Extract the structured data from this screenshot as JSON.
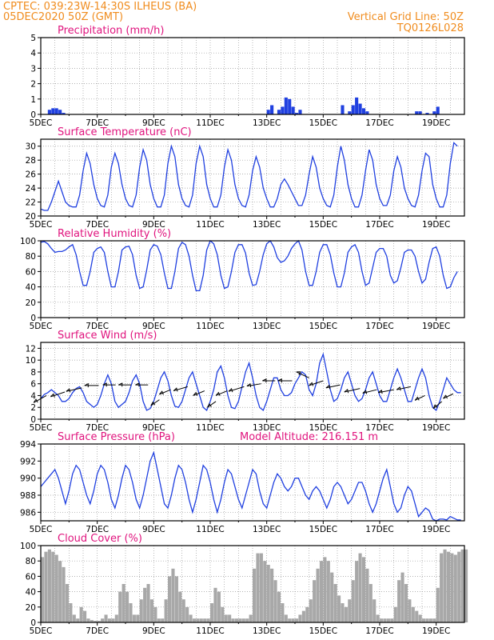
{
  "header": {
    "line1": "CPTEC:   039:23W-14:30S   ILHEUS (BA)",
    "line2": "05DEC2020 50Z (GMT)",
    "right1": "Vertical Grid Line: 50Z",
    "right2": "TQ0126L028"
  },
  "x_ticks": [
    "5DEC",
    "7DEC",
    "9DEC",
    "11DEC",
    "13DEC",
    "15DEC",
    "17DEC",
    "19DEC"
  ],
  "colors": {
    "header": "#f08c1e",
    "title": "#e0147e",
    "series": "#2040e0",
    "cloud": "#a8a8a8",
    "arrow": "#000000"
  },
  "chart_data": [
    {
      "type": "bar",
      "title": "Precipitation (mm/h)",
      "ylim": [
        0,
        5
      ],
      "yticks": [
        0,
        1,
        2,
        3,
        4,
        5
      ],
      "x_start": 5,
      "x_end": 20,
      "dt": 0.125,
      "values": [
        0,
        0,
        0.3,
        0.4,
        0.4,
        0.3,
        0.1,
        0,
        0,
        0,
        0,
        0,
        0,
        0,
        0,
        0,
        0,
        0,
        0,
        0,
        0,
        0,
        0,
        0,
        0,
        0,
        0,
        0,
        0,
        0,
        0,
        0,
        0,
        0,
        0,
        0,
        0,
        0,
        0,
        0,
        0,
        0,
        0,
        0,
        0,
        0,
        0,
        0,
        0,
        0,
        0,
        0,
        0,
        0,
        0,
        0,
        0,
        0,
        0,
        0,
        0,
        0,
        0,
        0,
        0.3,
        0.6,
        0,
        0.3,
        0.5,
        1.1,
        1.0,
        0.5,
        0.1,
        0.3,
        0,
        0,
        0,
        0,
        0,
        0,
        0,
        0,
        0,
        0,
        0,
        0.6,
        0,
        0.2,
        0.6,
        1.1,
        0.7,
        0.4,
        0.2,
        0,
        0,
        0,
        0,
        0,
        0,
        0,
        0,
        0,
        0,
        0,
        0,
        0,
        0.2,
        0.2,
        0,
        0.1,
        0,
        0.2,
        0.5,
        0,
        0,
        0,
        0,
        0,
        0,
        0,
        0,
        0
      ]
    },
    {
      "type": "line",
      "title": "Surface Temperature (nC)",
      "ylim": [
        20,
        31
      ],
      "yticks": [
        20,
        22,
        24,
        26,
        28,
        30
      ],
      "x_start": 5,
      "x_end": 20,
      "dt": 0.125,
      "values": [
        21,
        20.8,
        20.8,
        22,
        23.5,
        25,
        23.5,
        22,
        21.5,
        21.3,
        21.3,
        23,
        26.5,
        29,
        27.5,
        24.5,
        22.5,
        21.5,
        21.3,
        23,
        27,
        29,
        27.5,
        24.5,
        22.5,
        21.5,
        21.3,
        23,
        27,
        29.5,
        28,
        24.5,
        22.5,
        21.3,
        21.3,
        23,
        27.5,
        30,
        28.5,
        24.5,
        22.5,
        21.5,
        21.3,
        23,
        27.5,
        30,
        28.5,
        24.5,
        22.5,
        21.3,
        21.3,
        23,
        27,
        29.5,
        28,
        24.5,
        22.5,
        21.5,
        21.3,
        23,
        26.5,
        28.5,
        27,
        24,
        22.5,
        21.3,
        21.3,
        22.5,
        24.5,
        25.3,
        24.5,
        23.5,
        22.5,
        21.5,
        21.5,
        23,
        26,
        28.5,
        27,
        24,
        22.5,
        21.5,
        21.3,
        23,
        27,
        30,
        28,
        24.5,
        22.5,
        21.3,
        21.3,
        23,
        26.5,
        29.5,
        28,
        24.5,
        22.5,
        21.5,
        21.5,
        23,
        26.5,
        28.5,
        27,
        24,
        22.5,
        21.5,
        21.3,
        23,
        26.5,
        29,
        28.5,
        24.5,
        22.5,
        21.3,
        21.3,
        23,
        27.5,
        30.5,
        30
      ]
    },
    {
      "type": "line",
      "title": "Relative Humidity (%)",
      "ylim": [
        0,
        100
      ],
      "yticks": [
        0,
        20,
        40,
        60,
        80,
        100
      ],
      "x_start": 5,
      "x_end": 20,
      "dt": 0.125,
      "values": [
        98,
        99,
        96,
        90,
        85,
        86,
        86,
        88,
        92,
        95,
        82,
        60,
        42,
        42,
        60,
        85,
        90,
        92,
        85,
        60,
        40,
        40,
        60,
        88,
        92,
        93,
        82,
        55,
        38,
        40,
        62,
        88,
        95,
        93,
        82,
        58,
        38,
        38,
        60,
        90,
        98,
        95,
        80,
        55,
        35,
        35,
        55,
        88,
        100,
        96,
        82,
        55,
        38,
        40,
        60,
        85,
        95,
        95,
        84,
        58,
        42,
        43,
        60,
        82,
        96,
        100,
        92,
        78,
        72,
        74,
        80,
        90,
        96,
        100,
        88,
        60,
        42,
        42,
        60,
        85,
        95,
        95,
        82,
        58,
        40,
        40,
        58,
        85,
        92,
        95,
        85,
        60,
        42,
        45,
        65,
        85,
        90,
        90,
        80,
        55,
        45,
        48,
        65,
        85,
        88,
        88,
        80,
        60,
        45,
        50,
        72,
        90,
        92,
        80,
        55,
        38,
        40,
        52,
        60
      ]
    },
    {
      "type": "line",
      "title": "Surface Wind (m/s)",
      "ylim": [
        0,
        13
      ],
      "yticks": [
        0,
        2,
        4,
        6,
        8,
        10,
        12
      ],
      "x_start": 5,
      "x_end": 20,
      "dt": 0.125,
      "values": [
        3.5,
        4.2,
        4.5,
        5,
        4.5,
        4,
        3,
        3,
        3.5,
        4.5,
        5.2,
        5.5,
        4.5,
        3,
        2.5,
        2,
        2.5,
        4,
        6,
        7.5,
        6,
        3,
        2,
        2.5,
        3,
        4.5,
        6.5,
        7.5,
        6,
        3,
        1.5,
        1.8,
        3,
        5,
        7,
        8,
        6.5,
        4,
        2.2,
        2,
        3,
        5,
        7,
        8,
        6,
        4,
        2,
        1.5,
        3,
        5,
        8,
        9,
        7,
        4,
        2,
        1.8,
        3,
        5.5,
        8,
        9.5,
        7,
        4,
        2,
        1.5,
        3,
        5,
        7,
        7,
        5,
        4,
        4,
        4.5,
        6,
        7,
        8,
        7.5,
        5,
        4,
        6,
        9.5,
        11,
        8,
        5,
        3,
        3.5,
        5,
        7,
        8,
        6,
        4,
        3,
        3.5,
        5,
        7,
        8,
        6,
        4,
        3,
        3,
        5,
        7,
        8.5,
        7,
        5,
        3,
        3,
        5,
        7,
        8.5,
        7,
        4,
        2,
        1.5,
        3,
        5,
        7,
        6,
        5,
        4.5,
        4.5
      ]
    },
    {
      "type": "line",
      "title": "Surface Pressure (hPa)",
      "subtitle": "Model Altitude: 216.151  m",
      "ylim": [
        985,
        994
      ],
      "yticks": [
        986,
        988,
        990,
        992,
        994
      ],
      "x_start": 5,
      "x_end": 20,
      "dt": 0.125,
      "values": [
        989,
        989.5,
        990,
        990.5,
        991,
        990,
        988.5,
        987,
        988.5,
        990.5,
        991.5,
        991,
        989.5,
        988,
        987,
        988.5,
        990.5,
        991.5,
        991,
        989.5,
        987.5,
        986.5,
        988,
        990,
        991.5,
        991,
        989.5,
        987.5,
        986.5,
        988,
        990,
        992,
        993,
        991,
        989,
        987,
        986.5,
        988,
        990,
        991.5,
        991,
        989.5,
        987.5,
        986,
        987.5,
        989.5,
        991.5,
        991,
        989.5,
        987.5,
        986,
        987.5,
        989.5,
        991,
        990.5,
        989,
        987.5,
        986.5,
        988,
        989.5,
        991,
        990.5,
        988.5,
        987,
        986.5,
        988,
        989.5,
        990.5,
        990,
        989,
        988.5,
        989,
        990,
        990,
        989,
        988,
        987.5,
        988.5,
        989,
        988.5,
        987.5,
        986.5,
        987.5,
        989,
        989.5,
        989,
        988,
        987,
        987.5,
        988.5,
        989.5,
        989.5,
        988.5,
        987,
        986,
        987,
        988.5,
        990,
        991,
        989,
        987,
        986,
        986.5,
        988,
        989,
        988.5,
        987,
        985.5,
        986,
        986.5,
        986.2,
        985.2,
        985,
        985.2,
        985.2,
        985.1,
        985.5,
        985.3,
        985.1,
        985.1
      ]
    },
    {
      "type": "bar",
      "title": "Cloud Cover (%)",
      "ylim": [
        0,
        100
      ],
      "yticks": [
        0,
        20,
        40,
        60,
        80,
        100
      ],
      "x_start": 5,
      "x_end": 20,
      "dt": 0.125,
      "values": [
        85,
        92,
        95,
        92,
        88,
        80,
        72,
        50,
        25,
        10,
        5,
        20,
        15,
        5,
        3,
        2,
        2,
        5,
        10,
        5,
        5,
        10,
        40,
        50,
        40,
        25,
        10,
        10,
        30,
        45,
        50,
        30,
        20,
        5,
        5,
        30,
        60,
        70,
        60,
        40,
        30,
        20,
        10,
        5,
        5,
        5,
        5,
        5,
        25,
        45,
        40,
        20,
        10,
        10,
        5,
        5,
        5,
        5,
        5,
        10,
        70,
        90,
        90,
        80,
        75,
        70,
        55,
        40,
        25,
        10,
        5,
        5,
        5,
        10,
        15,
        20,
        30,
        55,
        70,
        80,
        85,
        80,
        65,
        50,
        35,
        25,
        20,
        30,
        55,
        80,
        90,
        85,
        70,
        50,
        30,
        10,
        5,
        5,
        5,
        5,
        20,
        55,
        65,
        50,
        30,
        20,
        15,
        10,
        5,
        5,
        5,
        5,
        45,
        90,
        95,
        92,
        90,
        88,
        92,
        95,
        95
      ]
    },
    {
      "type": "barbs",
      "title": "Surface Wind direction arrows",
      "x": [
        5.2,
        5.85,
        6.45,
        7.05,
        7.65,
        8.2,
        8.8,
        9.2,
        9.6,
        10.2,
        10.8,
        11.2,
        11.6,
        12.2,
        12.8,
        13.3,
        13.9,
        14.5,
        15.0,
        15.6,
        16.3,
        16.9,
        17.5,
        18.1,
        18.6,
        19.2,
        19.6
      ],
      "y": [
        4,
        4.6,
        5.3,
        5.7,
        5.8,
        5.8,
        5.8,
        3.3,
        5.0,
        5.5,
        4.8,
        3.0,
        4.8,
        5.5,
        6.0,
        6.5,
        6.5,
        7.0,
        6.5,
        5.8,
        5.2,
        5.0,
        5.0,
        5.5,
        4.0,
        3.0,
        4.3
      ],
      "dx": [
        -0.45,
        -0.5,
        -0.55,
        -0.5,
        -0.45,
        -0.45,
        -0.45,
        -0.3,
        -0.4,
        -0.5,
        -0.4,
        -0.3,
        -0.4,
        -0.55,
        -0.5,
        -0.45,
        -0.5,
        -0.45,
        -0.5,
        -0.5,
        -0.55,
        -0.5,
        -0.55,
        -0.5,
        -0.35,
        -0.3,
        -0.35
      ],
      "dy": [
        -1.2,
        -0.8,
        -0.6,
        0,
        0,
        0,
        0,
        -1.0,
        -0.8,
        -0.7,
        -0.8,
        -1.0,
        -0.8,
        -0.8,
        -0.4,
        0,
        0,
        1.0,
        -0.8,
        -0.5,
        -0.6,
        -0.6,
        -0.5,
        -0.5,
        -0.8,
        -1.2,
        -0.8
      ]
    }
  ]
}
